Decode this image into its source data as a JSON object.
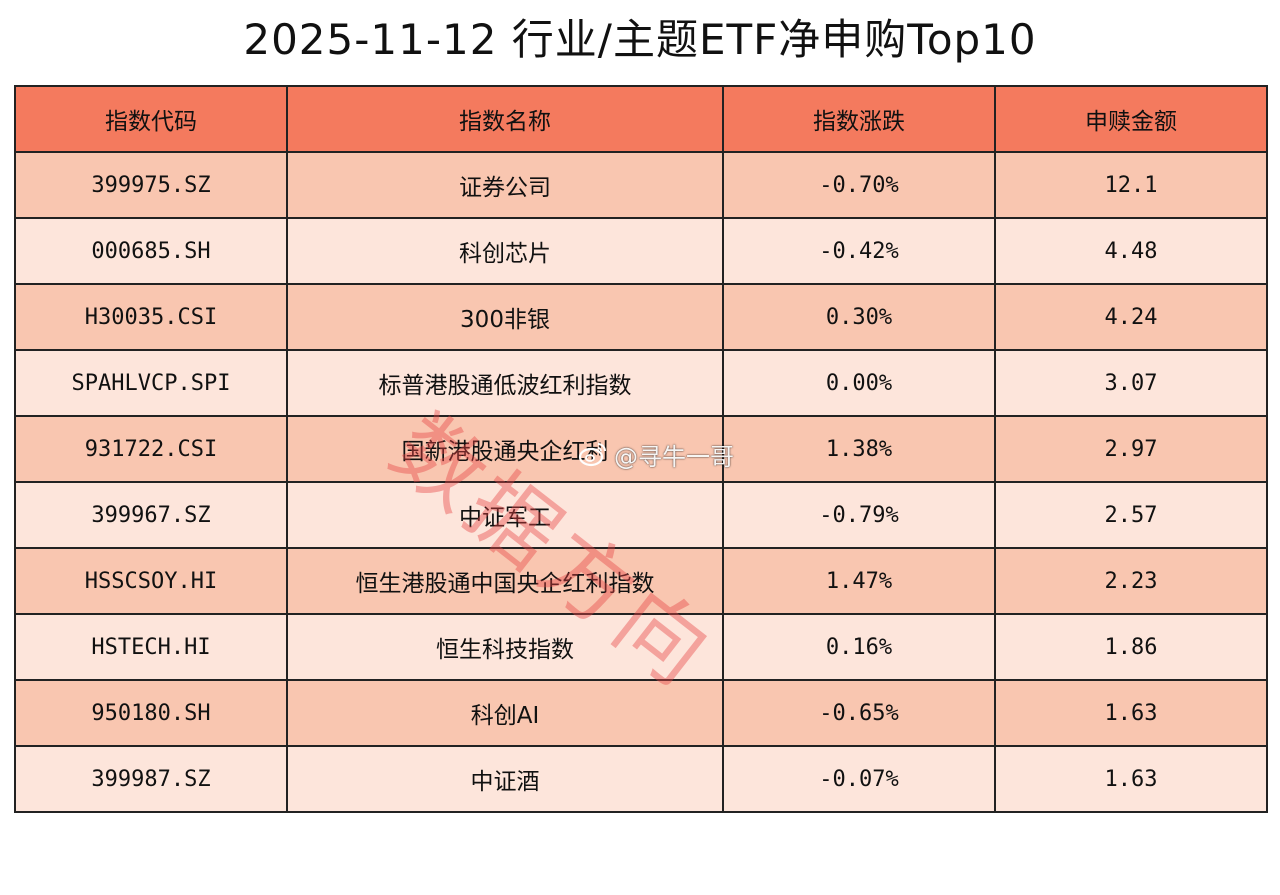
{
  "title": "2025-11-12 行业/主题ETF净申购Top10",
  "table": {
    "headers": [
      "指数代码",
      "指数名称",
      "指数涨跌",
      "申赎金额"
    ],
    "rows": [
      [
        "399975.SZ",
        "证券公司",
        "-0.70%",
        "12.1"
      ],
      [
        "000685.SH",
        "科创芯片",
        "-0.42%",
        "4.48"
      ],
      [
        "H30035.CSI",
        "300非银",
        "0.30%",
        "4.24"
      ],
      [
        "SPAHLVCP.SPI",
        "标普港股通低波红利指数",
        "0.00%",
        "3.07"
      ],
      [
        "931722.CSI",
        "国新港股通央企红利",
        "1.38%",
        "2.97"
      ],
      [
        "399967.SZ",
        "中证军工",
        "-0.79%",
        "2.57"
      ],
      [
        "HSSCSOY.HI",
        "恒生港股通中国央企红利指数",
        "1.47%",
        "2.23"
      ],
      [
        "HSTECH.HI",
        "恒生科技指数",
        "0.16%",
        "1.86"
      ],
      [
        "950180.SH",
        "科创AI",
        "-0.65%",
        "1.63"
      ],
      [
        "399987.SZ",
        "中证酒",
        "-0.07%",
        "1.63"
      ]
    ]
  },
  "watermark": "数据方向",
  "credit": {
    "icon": "weibo-icon",
    "text": "@寻牛一哥"
  },
  "colors": {
    "header_bg": "#f47a5e",
    "row_odd_bg": "#f9c6b0",
    "row_even_bg": "#fde5db",
    "watermark": "#e84646"
  }
}
